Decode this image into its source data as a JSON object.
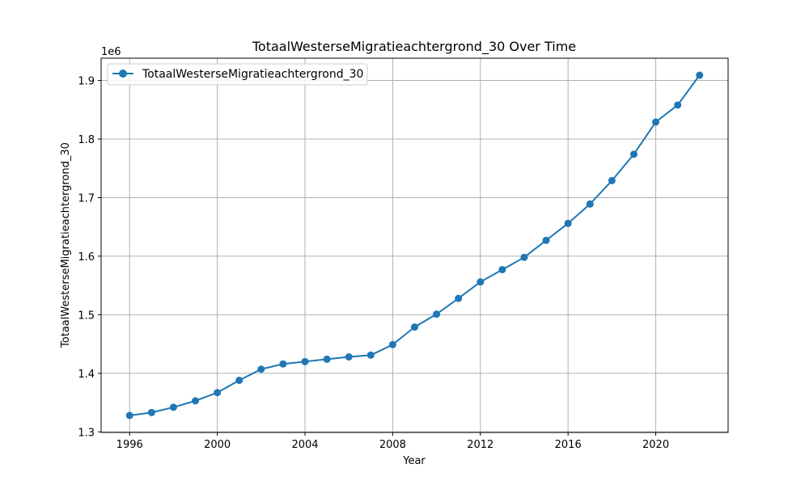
{
  "chart_data": {
    "type": "line",
    "title": "TotaalWesterseMigratieachtergrond_30 Over Time",
    "xlabel": "Year",
    "ylabel": "TotaalWesterseMigratieachtergrond_30",
    "y_offset_label": "1e6",
    "xlim": [
      1994.7,
      2023.3
    ],
    "ylim": [
      1.299,
      1.938
    ],
    "x_ticks": [
      1996,
      2000,
      2004,
      2008,
      2012,
      2016,
      2020
    ],
    "y_ticks": [
      1.3,
      1.4,
      1.5,
      1.6,
      1.7,
      1.8,
      1.9
    ],
    "y_tick_labels": [
      "1.3",
      "1.4",
      "1.5",
      "1.6",
      "1.7",
      "1.8",
      "1.9"
    ],
    "grid": true,
    "legend_position": "top-left",
    "series": [
      {
        "name": "TotaalWesterseMigratieachtergrond_30",
        "color": "#1f77b4",
        "x": [
          1996,
          1997,
          1998,
          1999,
          2000,
          2001,
          2002,
          2003,
          2004,
          2005,
          2006,
          2007,
          2008,
          2009,
          2010,
          2011,
          2012,
          2013,
          2014,
          2015,
          2016,
          2017,
          2018,
          2019,
          2020,
          2021,
          2022
        ],
        "y": [
          1.328,
          1.333,
          1.342,
          1.353,
          1.367,
          1.388,
          1.407,
          1.416,
          1.42,
          1.424,
          1.428,
          1.431,
          1.449,
          1.479,
          1.501,
          1.528,
          1.556,
          1.577,
          1.598,
          1.627,
          1.656,
          1.689,
          1.729,
          1.774,
          1.829,
          1.858,
          1.909
        ]
      }
    ]
  }
}
